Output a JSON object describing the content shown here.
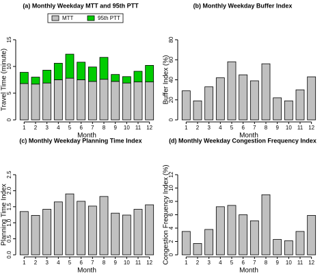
{
  "chart_data": [
    {
      "type": "bar",
      "title": "(a) Monthly Weekday MTT and 95th PTT",
      "xlabel": "Month",
      "ylabel": "Travel Time (minute)",
      "categories": [
        "1",
        "2",
        "3",
        "4",
        "5",
        "6",
        "7",
        "8",
        "9",
        "10",
        "11",
        "12"
      ],
      "series": [
        {
          "name": "MTT",
          "color": "#c0c0c0",
          "values": [
            6.8,
            6.7,
            6.9,
            7.5,
            7.8,
            7.5,
            7.2,
            7.6,
            7.2,
            6.9,
            7.1,
            7.1
          ]
        },
        {
          "name": "95th PTT",
          "color": "#00cc00",
          "values": [
            2.1,
            1.3,
            2.4,
            3.1,
            4.5,
            3.3,
            2.7,
            4.1,
            1.3,
            1.2,
            2.0,
            3.1
          ]
        }
      ],
      "stacked": true,
      "legend": "top",
      "ylim": [
        0,
        15
      ],
      "yticks": [
        0,
        5,
        10,
        15
      ]
    },
    {
      "type": "bar",
      "title": "(b) Monthly Weekday Buffer Index",
      "xlabel": "Month",
      "ylabel": "Buffer Index (%)",
      "categories": [
        "1",
        "2",
        "3",
        "4",
        "5",
        "6",
        "7",
        "8",
        "9",
        "10",
        "11",
        "12"
      ],
      "values": [
        29,
        19,
        33,
        42,
        58,
        45,
        39,
        56,
        22,
        19,
        30,
        43
      ],
      "color": "#c0c0c0",
      "ylim": [
        0,
        80
      ],
      "yticks": [
        0,
        20,
        40,
        60,
        80
      ]
    },
    {
      "type": "bar",
      "title": "(c) Monthly Weekday Planning Time Index",
      "xlabel": "Month",
      "ylabel": "Planning Time Index",
      "categories": [
        "1",
        "2",
        "3",
        "4",
        "5",
        "6",
        "7",
        "8",
        "9",
        "10",
        "11",
        "12"
      ],
      "values": [
        1.35,
        1.23,
        1.42,
        1.65,
        1.9,
        1.67,
        1.52,
        1.82,
        1.3,
        1.24,
        1.42,
        1.56
      ],
      "color": "#c0c0c0",
      "ylim": [
        0,
        2.5
      ],
      "yticks": [
        {
          "value": 0,
          "label": "0.0"
        },
        0.5,
        {
          "value": 1,
          "label": "1.0"
        },
        1.5,
        {
          "value": 2,
          "label": "2.0"
        },
        2.5
      ]
    },
    {
      "type": "bar",
      "title": "(d) Monthly Weekday Congestion Frequency Index",
      "xlabel": "Month",
      "ylabel": "Congestion Frequency Index (%)",
      "categories": [
        "1",
        "2",
        "3",
        "4",
        "5",
        "6",
        "7",
        "8",
        "9",
        "10",
        "11",
        "12"
      ],
      "values": [
        3.5,
        1.7,
        3.8,
        7.2,
        7.4,
        6.0,
        5.1,
        9.0,
        2.3,
        2.1,
        3.5,
        5.9
      ],
      "color": "#c0c0c0",
      "ylim": [
        0,
        12
      ],
      "yticks": [
        0,
        2,
        4,
        6,
        8,
        10,
        12
      ]
    }
  ]
}
